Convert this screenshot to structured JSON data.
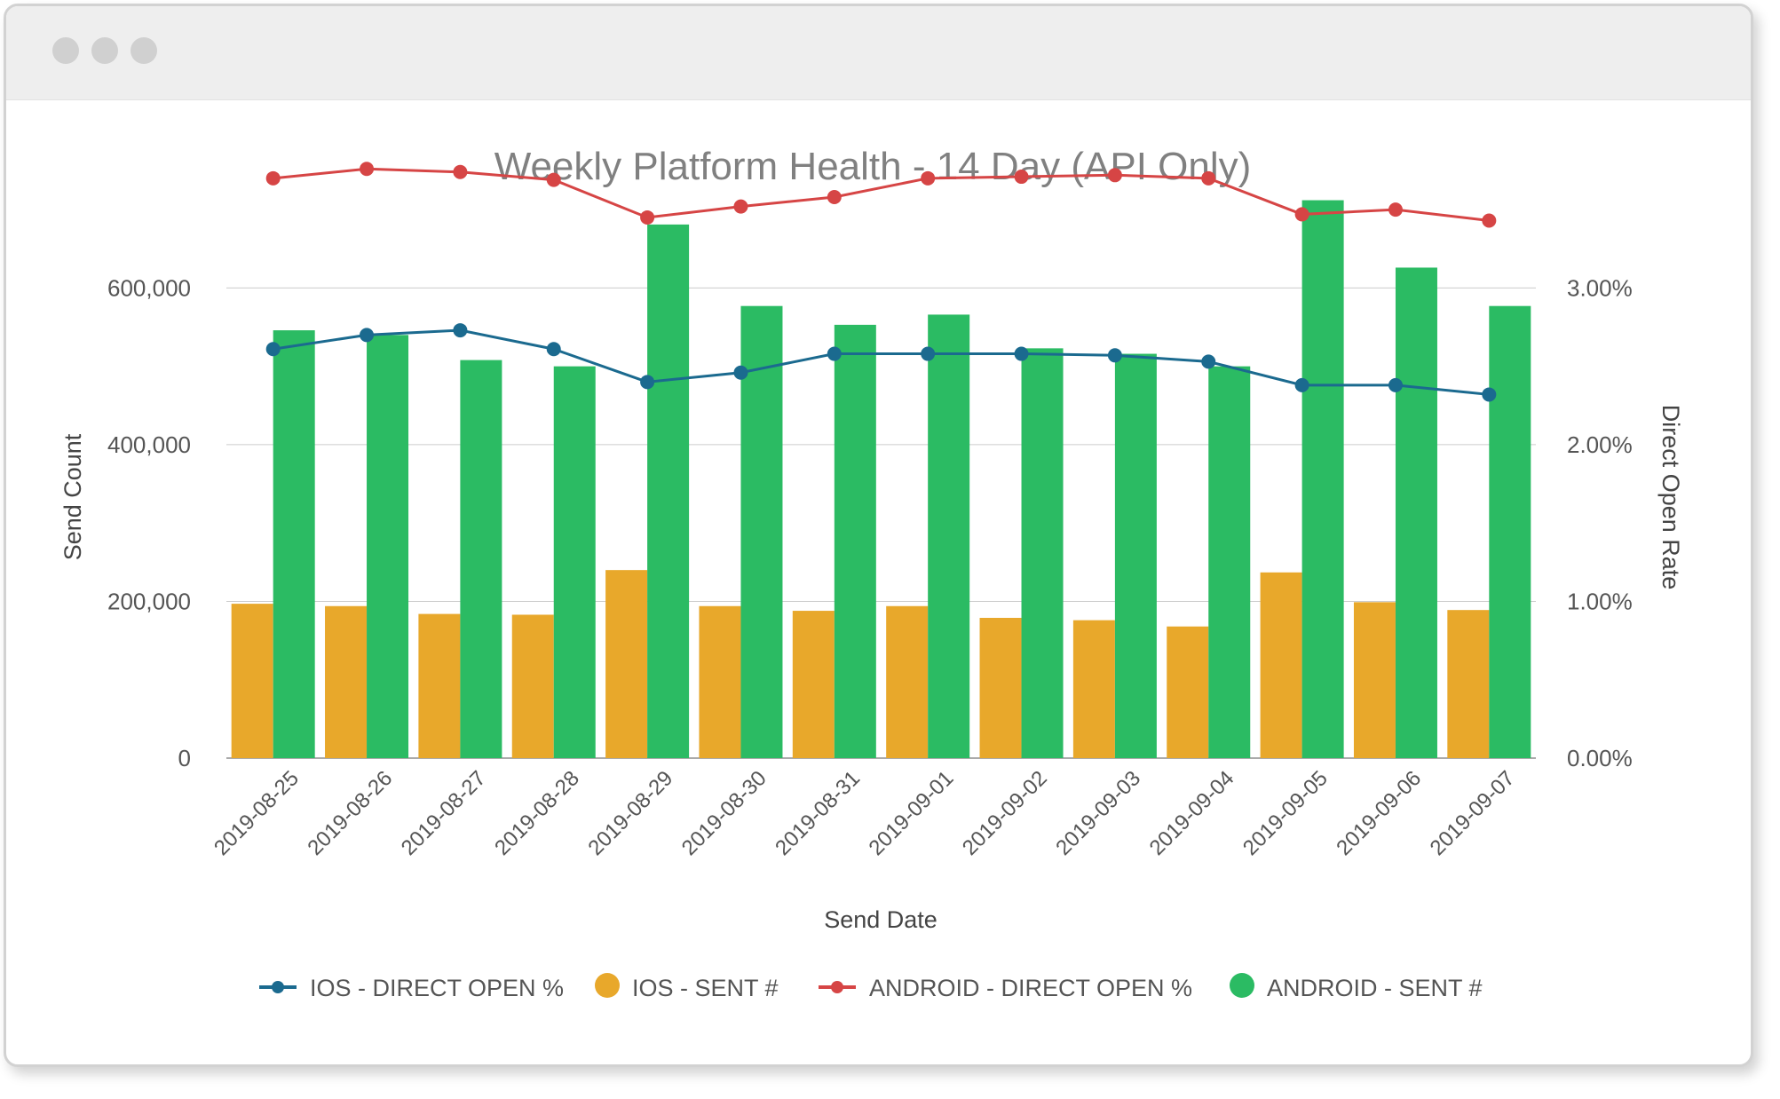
{
  "window": {
    "controls": [
      "window-dot",
      "window-dot",
      "window-dot"
    ]
  },
  "colors": {
    "ios_line": "#1b6a8f",
    "ios_bar": "#e8a82b",
    "android_line": "#d64545",
    "android_bar": "#2bbb63",
    "axis": "#555555",
    "grid": "#cccccc"
  },
  "chart_data": {
    "type": "bar",
    "title": "Weekly Platform Health - 14 Day (API Only)",
    "xlabel": "Send Date",
    "ylabel": "Send Count",
    "y2label": "Direct Open Rate",
    "ylim": [
      0,
      750000
    ],
    "y2lim": [
      0,
      0.0375
    ],
    "y_ticks": [
      "0",
      "200,000",
      "400,000",
      "600,000"
    ],
    "y2_ticks": [
      "0.00%",
      "1.00%",
      "2.00%",
      "3.00%"
    ],
    "categories": [
      "2019-08-25",
      "2019-08-26",
      "2019-08-27",
      "2019-08-28",
      "2019-08-29",
      "2019-08-30",
      "2019-08-31",
      "2019-09-01",
      "2019-09-02",
      "2019-09-03",
      "2019-09-04",
      "2019-09-05",
      "2019-09-06",
      "2019-09-07"
    ],
    "series": [
      {
        "name": "IOS - DIRECT OPEN %",
        "type": "line",
        "axis": "right",
        "values": [
          0.0261,
          0.027,
          0.0273,
          0.0261,
          0.024,
          0.0246,
          0.0258,
          0.0258,
          0.0258,
          0.0257,
          0.0253,
          0.0238,
          0.0238,
          0.0232
        ]
      },
      {
        "name": "IOS - SENT #",
        "type": "bar",
        "axis": "left",
        "values": [
          197000,
          194000,
          184000,
          183000,
          240000,
          194000,
          188000,
          194000,
          179000,
          176000,
          168000,
          237000,
          199000,
          189000
        ]
      },
      {
        "name": "ANDROID - DIRECT OPEN %",
        "type": "line",
        "axis": "right",
        "values": [
          0.037,
          0.0376,
          0.0374,
          0.0369,
          0.0345,
          0.0352,
          0.0358,
          0.037,
          0.0371,
          0.0372,
          0.037,
          0.0347,
          0.035,
          0.0343
        ]
      },
      {
        "name": "ANDROID - SENT #",
        "type": "bar",
        "axis": "left",
        "values": [
          546000,
          540000,
          508000,
          500000,
          681000,
          577000,
          553000,
          566000,
          523000,
          516000,
          500000,
          712000,
          626000,
          577000
        ]
      }
    ],
    "legend_position": "bottom",
    "grid": "horizontal"
  }
}
